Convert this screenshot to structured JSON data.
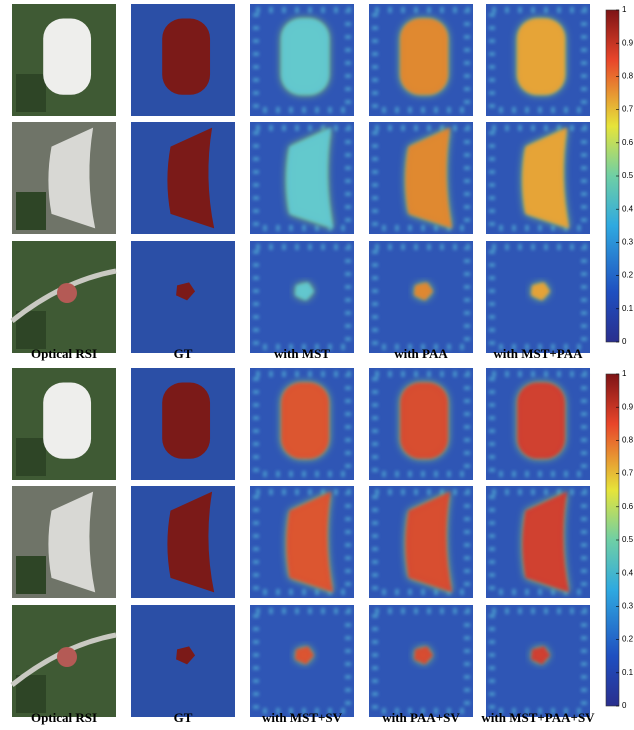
{
  "panels": [
    {
      "columns": [
        "Optical RSI",
        "GT",
        "with  MST",
        "with  PAA",
        "with MST+PAA"
      ],
      "colorbar_ticks": [
        0,
        0.1,
        0.2,
        0.3,
        0.4,
        0.5,
        0.6,
        0.7,
        0.8,
        0.9,
        1
      ]
    },
    {
      "columns": [
        "Optical RSI",
        "GT",
        "with MST+SV",
        "with PAA+SV",
        "with MST+PAA+SV"
      ],
      "colorbar_ticks": [
        0,
        0.1,
        0.2,
        0.3,
        0.4,
        0.5,
        0.6,
        0.7,
        0.8,
        0.9,
        1
      ]
    }
  ]
}
